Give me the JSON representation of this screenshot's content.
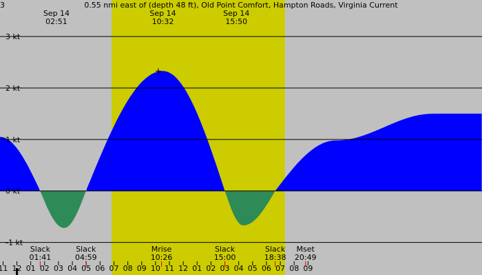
{
  "chart_data": {
    "type": "area",
    "title": "0.55 nmi east of (depth 48 ft), Old Point Comfort, Hampton Roads, Virginia Current",
    "title_prefix": "3",
    "colors": {
      "night": "#c0c0c0",
      "day": "#cccc00",
      "flood": "#0000ff",
      "ebb": "#2e8b57",
      "line": "#000000",
      "tick_red": "#ff0000"
    },
    "x_unit": "hours from midnight Sep 14",
    "xlim": [
      -1.22,
      33.55
    ],
    "ylim": [
      -1.5,
      3.55
    ],
    "y_ticks": [
      {
        "value": 3,
        "label": "3 kt"
      },
      {
        "value": 2,
        "label": "2 kt"
      },
      {
        "value": 1,
        "label": "1 kt"
      },
      {
        "value": 0,
        "label": "0 kt"
      },
      {
        "value": -1,
        "label": "-1 kt"
      }
    ],
    "daylight": {
      "start": 6.83,
      "end": 19.33
    },
    "current_series": [
      {
        "x": -1.22,
        "y": 1.05
      },
      {
        "x": 1.68,
        "y": 0
      },
      {
        "x": 3.4,
        "y": -0.72
      },
      {
        "x": 4.98,
        "y": 0
      },
      {
        "x": 10.53,
        "y": 2.33
      },
      {
        "x": 15.0,
        "y": 0
      },
      {
        "x": 16.33,
        "y": -0.67
      },
      {
        "x": 18.63,
        "y": 0
      },
      {
        "x": 23.0,
        "y": 0.98
      },
      {
        "x": 30.0,
        "y": 1.5
      }
    ],
    "peak_labels": [
      {
        "x": 2.85,
        "date": "Sep 14",
        "time": "02:51"
      },
      {
        "x": 10.53,
        "date": "Sep 14",
        "time": "10:32"
      },
      {
        "x": 15.83,
        "date": "Sep 14",
        "time": "15:50"
      }
    ],
    "max_marker": {
      "x": 10.2,
      "y": 2.33
    },
    "events": [
      {
        "x": 1.68,
        "name": "Slack",
        "time": "01:41"
      },
      {
        "x": 4.98,
        "name": "Slack",
        "time": "04:59"
      },
      {
        "x": 10.43,
        "name": "Mrise",
        "time": "10:26"
      },
      {
        "x": 15.0,
        "name": "Slack",
        "time": "15:00"
      },
      {
        "x": 18.63,
        "name": "Slack",
        "time": "18:38"
      },
      {
        "x": 20.82,
        "name": "Mset",
        "time": "20:49"
      }
    ],
    "hour_labels": [
      "11",
      "12",
      "01",
      "02",
      "03",
      "04",
      "05",
      "06",
      "07",
      "08",
      "09",
      "10",
      "11",
      "12",
      "01",
      "02",
      "03",
      "04",
      "05",
      "06",
      "07",
      "08",
      "09"
    ],
    "hour_label_start": -1,
    "red_ticks": [
      1.68,
      4.98,
      10.43,
      15.0,
      18.63,
      20.82
    ],
    "midnight_marker": 0
  }
}
